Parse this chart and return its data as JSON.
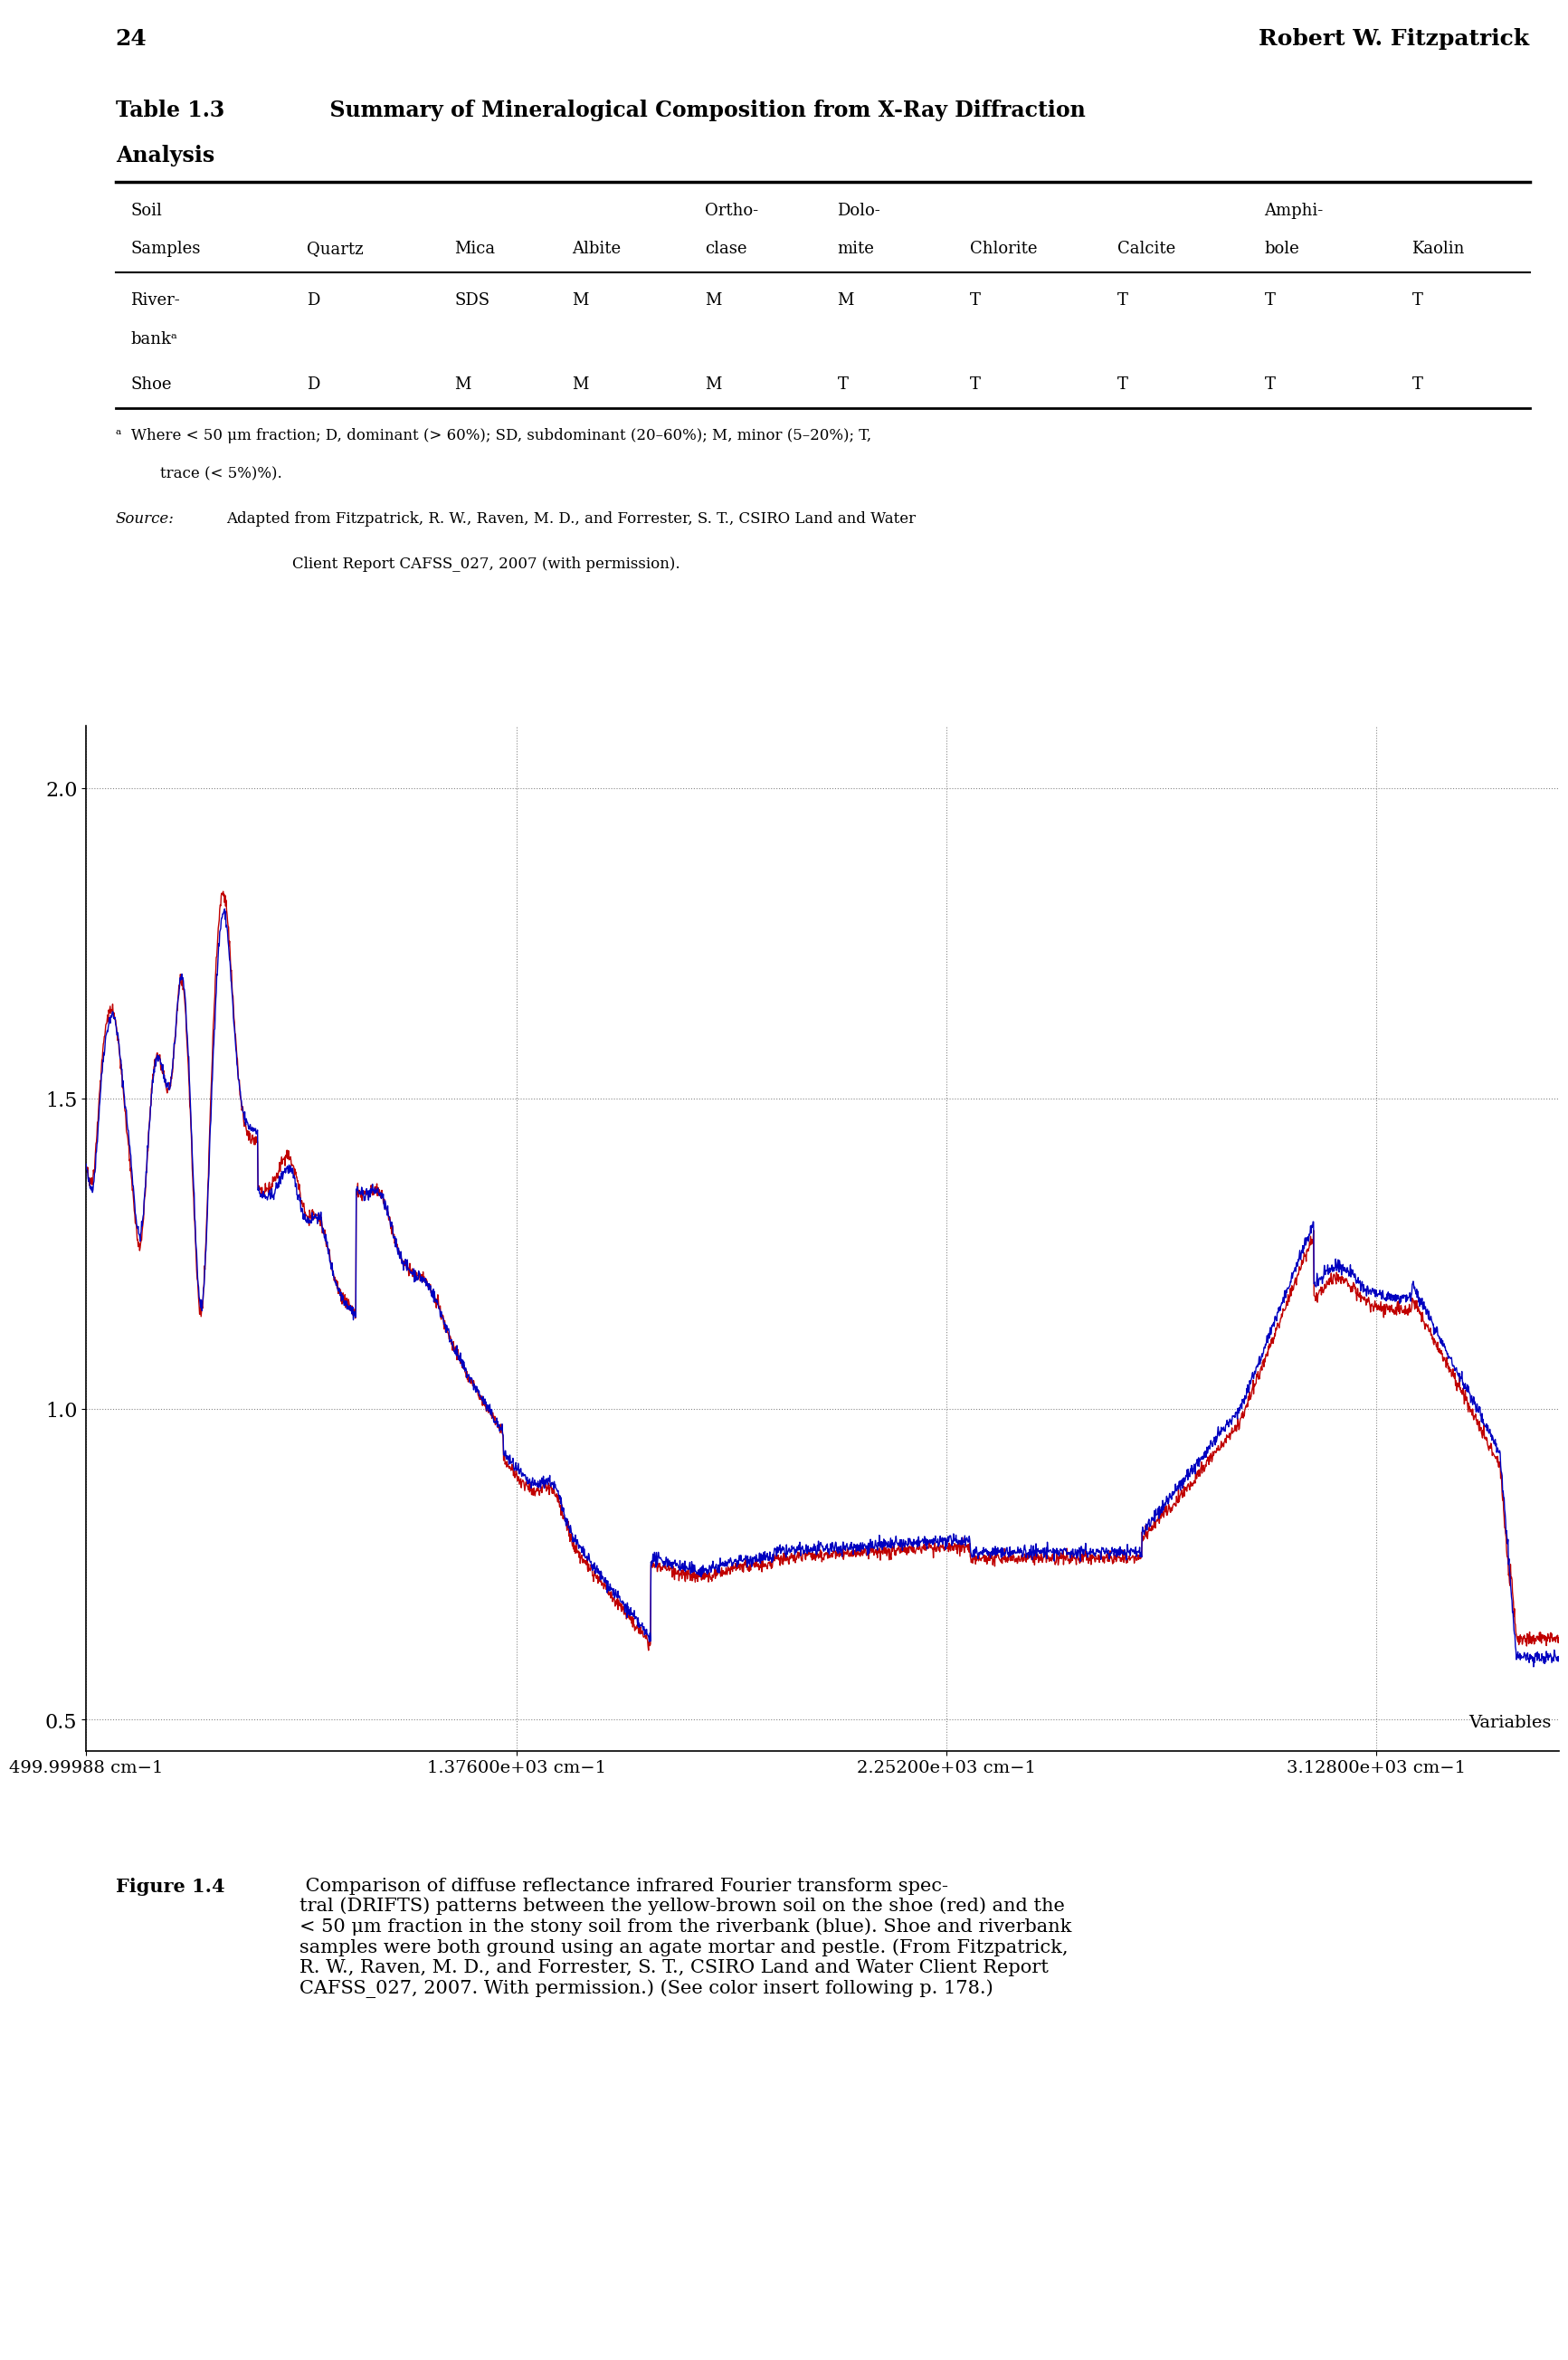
{
  "page_number": "24",
  "page_header_right": "Robert W. Fitzpatrick",
  "table_title": "Table 1.3   Summary of Mineralogical Composition from X-Ray Diffraction\nAnalysis",
  "table_headers_row1": [
    "Soil",
    "",
    "",
    "",
    "Ortho-",
    "Dolo-",
    "",
    "",
    "Amphi-",
    ""
  ],
  "table_headers_row2": [
    "Samples",
    "Quartz",
    "Mica",
    "Albite",
    "clase",
    "mite",
    "Chlorite",
    "Calcite",
    "bole",
    "Kaolin"
  ],
  "table_data": [
    [
      "River-\nbankᵃ",
      "D",
      "SDS",
      "M",
      "M",
      "M",
      "T",
      "T",
      "T",
      "T"
    ],
    [
      "Shoe",
      "D",
      "M",
      "M",
      "M",
      "T",
      "T",
      "T",
      "T",
      "T"
    ]
  ],
  "footnote_a": "ᵃ  Where < 50 μm fraction; D, dominant (> 60%); SD, subdominant (20–60%); M, minor (5–20%); T,\n   trace (< 5%)%).",
  "source_note": "Source: Adapted from Fitzpatrick, R. W., Raven, M. D., and Forrester, S. T., CSIRO Land and Water\n        Client Report CAFSS_027, 2007 (with permission).",
  "plot_ylabel": "",
  "plot_xlabel": "Variables",
  "plot_xtick_labels": [
    "499.99988 cm−1",
    "1.37600e+03 cm−1",
    "2.25200e+03 cm−1",
    "3.12800e+03 cm−1"
  ],
  "plot_ytick_labels": [
    "0.5",
    "1.0",
    "1.5",
    "2.0"
  ],
  "plot_yticks": [
    0.5,
    1.0,
    1.5,
    2.0
  ],
  "plot_xlim": [
    500,
    3500
  ],
  "plot_ylim": [
    0.45,
    2.1
  ],
  "caption": "Figure 1.4  Comparison of diffuse reflectance infrared Fourier transform spectral (DRIFTS) patterns between the yellow-brown soil on the shoe (red) and the\n< 50 μm fraction in the stony soil from the riverbank (blue). Shoe and riverbank\nsamples were both ground using an agate mortar and pestle. (From Fitzpatrick,\nR. W., Raven, M. D., and Forrester, S. T., CSIRO Land and Water Client Report\nCAFSS_027, 2007. With permission.) (See color insert following p. 178.)",
  "line1_color": "#c00000",
  "line2_color": "#0000c0",
  "bg_color": "#ffffff",
  "grid_color": "#888888",
  "axis_color": "#000000"
}
